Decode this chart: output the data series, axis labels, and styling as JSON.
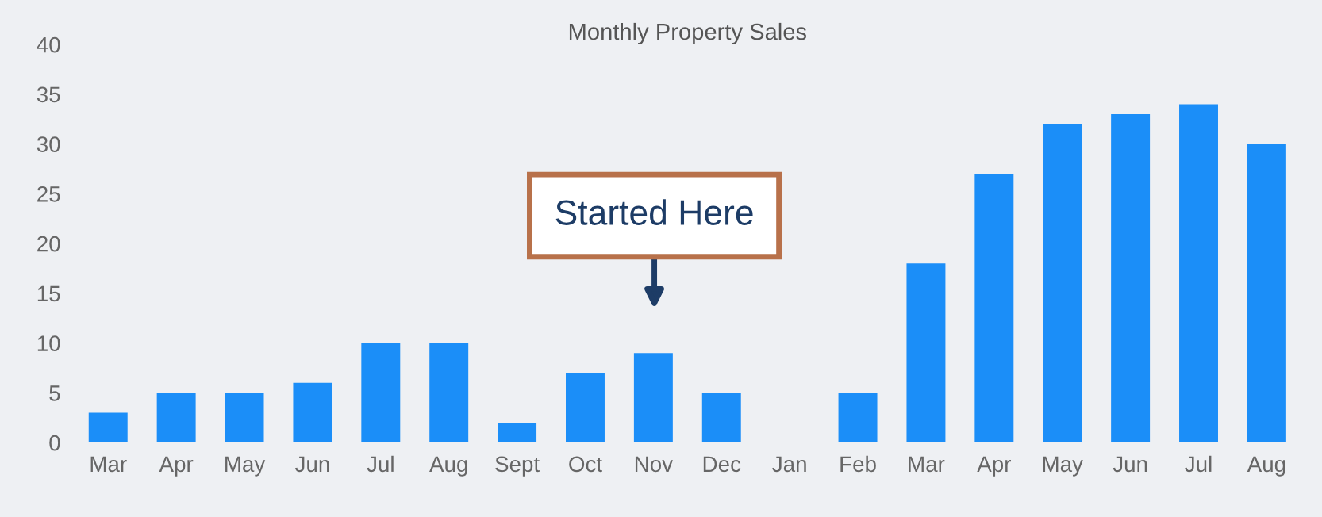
{
  "chart_data": {
    "type": "bar",
    "title": "Monthly Property Sales",
    "categories": [
      "Mar",
      "Apr",
      "May",
      "Jun",
      "Jul",
      "Aug",
      "Sept",
      "Oct",
      "Nov",
      "Dec",
      "Jan",
      "Feb",
      "Mar",
      "Apr",
      "May",
      "Jun",
      "Jul",
      "Aug"
    ],
    "values": [
      3,
      5,
      5,
      6,
      10,
      10,
      2,
      7,
      9,
      5,
      0,
      5,
      18,
      27,
      32,
      33,
      34,
      30
    ],
    "color": "#1b8ef8",
    "ylim": [
      0,
      40
    ],
    "yticks": [
      0,
      5,
      10,
      15,
      20,
      25,
      30,
      35,
      40
    ],
    "grid": false,
    "annotations": [
      "Started Here"
    ]
  }
}
